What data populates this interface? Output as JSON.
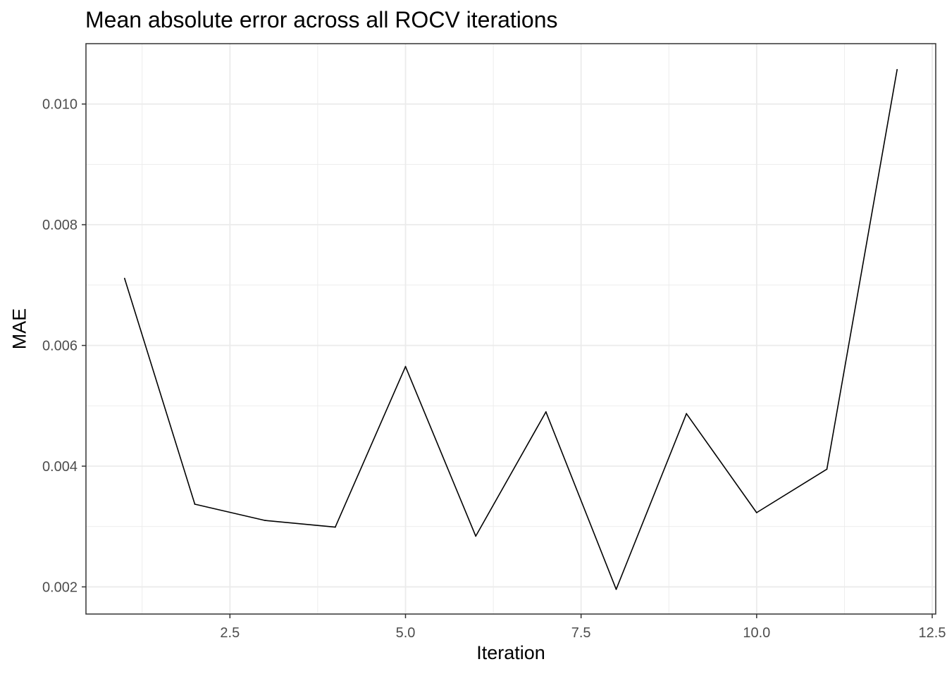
{
  "chart_data": {
    "type": "line",
    "title": "Mean absolute error across all ROCV iterations",
    "xlabel": "Iteration",
    "ylabel": "MAE",
    "x": [
      1,
      2,
      3,
      4,
      5,
      6,
      7,
      8,
      9,
      10,
      11,
      12
    ],
    "series": [
      {
        "values": [
          0.00711,
          0.00337,
          0.0031,
          0.00299,
          0.00565,
          0.00284,
          0.0049,
          0.00196,
          0.00487,
          0.00323,
          0.00395,
          0.01057
        ]
      }
    ],
    "xlim": [
      0.45,
      12.55
    ],
    "ylim": [
      0.00155,
      0.011
    ],
    "x_ticks": [
      2.5,
      5.0,
      7.5,
      10.0,
      12.5
    ],
    "x_tick_labels": [
      "2.5",
      "5.0",
      "7.5",
      "10.0",
      "12.5"
    ],
    "y_ticks": [
      0.002,
      0.004,
      0.006,
      0.008,
      0.01
    ],
    "y_tick_labels": [
      "0.002",
      "0.004",
      "0.006",
      "0.008",
      "0.010"
    ],
    "grid": true,
    "line_color": "#000000",
    "grid_color": "#ebebeb",
    "panel_border_color": "#333333"
  }
}
